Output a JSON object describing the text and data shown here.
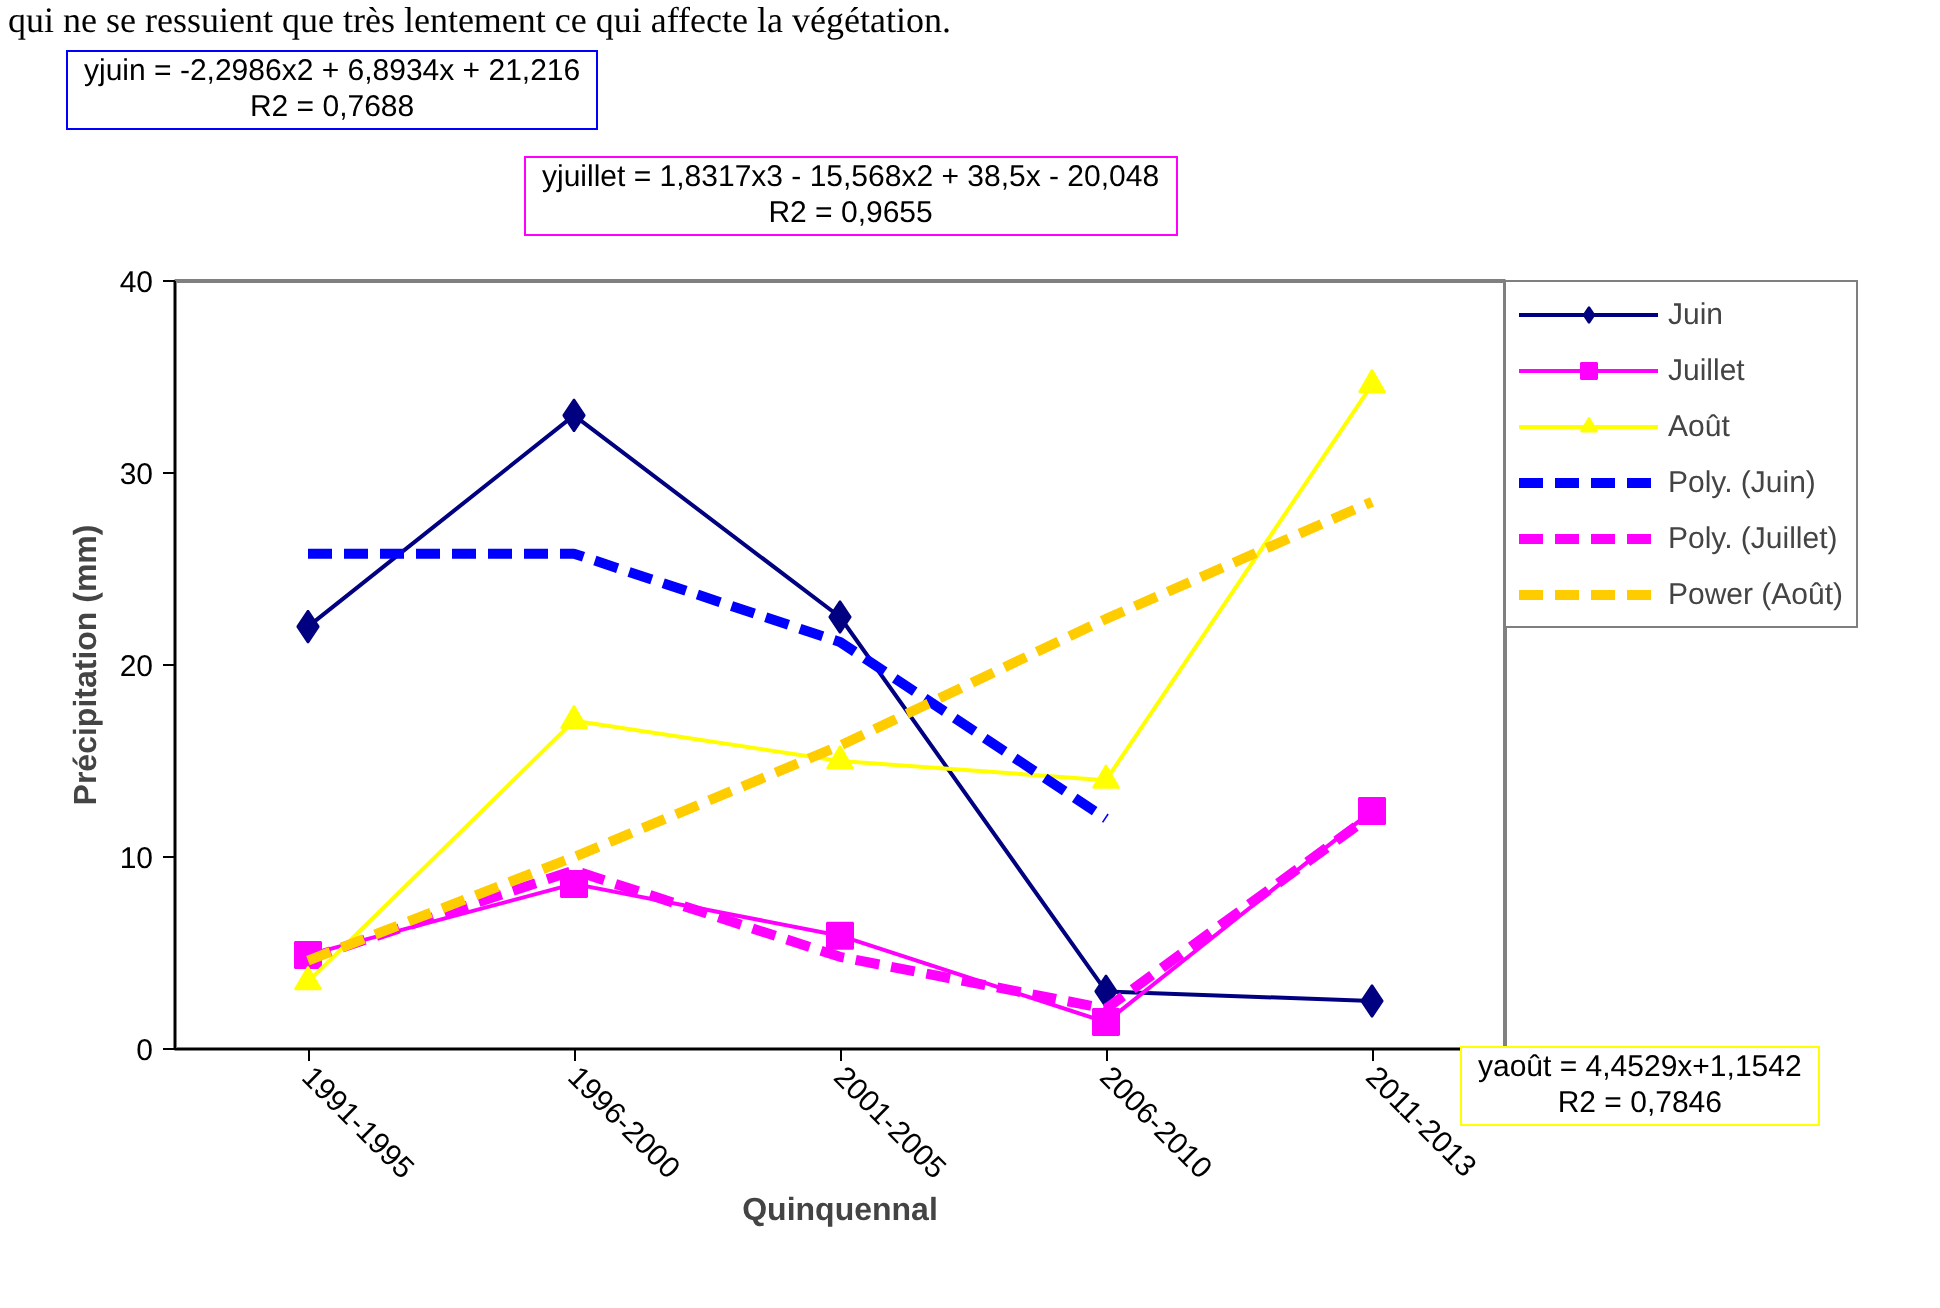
{
  "chart_data": {
    "type": "line",
    "xlabel": "Quinquennal",
    "ylabel": "Précipitation (mm)",
    "categories": [
      "1991-1995",
      "1996-2000",
      "2001-2005",
      "2006-2010",
      "2011-2013"
    ],
    "series": [
      {
        "name": "Juin",
        "color": "#000080",
        "marker": "diamond",
        "values": [
          22,
          33,
          22.5,
          3,
          2.5
        ]
      },
      {
        "name": "Juillet",
        "color": "#ff00ff",
        "marker": "square",
        "values": [
          4.9,
          8.6,
          5.9,
          1.4,
          12.4
        ]
      },
      {
        "name": "Août",
        "color": "#ffff00",
        "marker": "triangle",
        "values": [
          3.5,
          17.1,
          15,
          14,
          34.6
        ]
      },
      {
        "name": "Poly. (Juin)",
        "color": "#0000ff",
        "line_style": "dashed",
        "values": [
          25.8,
          25.8,
          21.2,
          12.0,
          null
        ]
      },
      {
        "name": "Poly. (Juillet)",
        "color": "#ff00ff",
        "line_style": "dashed",
        "values": [
          4.7,
          9.3,
          4.8,
          2.1,
          12.2
        ]
      },
      {
        "name": "Power (Août)",
        "color": "#ffcc00",
        "line_style": "dashed",
        "values": [
          4.6,
          10.0,
          15.8,
          22.4,
          28.5
        ]
      }
    ],
    "ylim": [
      0,
      40
    ],
    "yticks": [
      0,
      10,
      20,
      30,
      40
    ],
    "grid": false,
    "legend": "top right",
    "annotations": [
      "qui ne se ressuient que très lentement ce qui affecte la végétation.",
      "yjuin = -2,2986x2 + 6,8934x + 21,216\nR2 = 0,7688",
      "yjuillet = 1,8317x3 - 15,568x2 + 38,5x - 20,048\nR2 = 0,9655",
      "yaoût = 4,4529x+1,1542\nR2 = 0,7846"
    ]
  }
}
